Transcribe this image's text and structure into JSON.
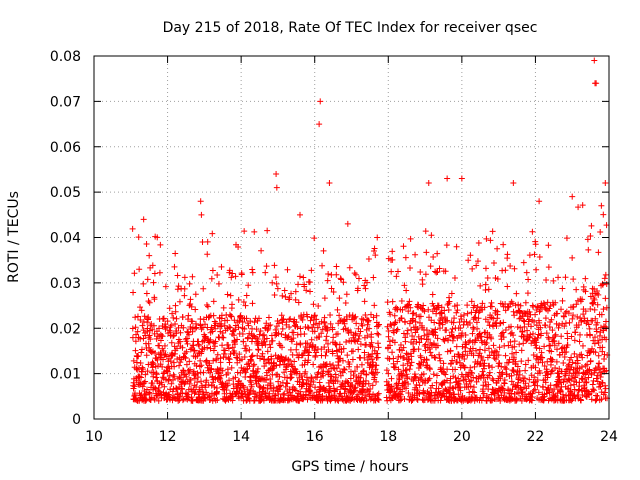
{
  "chart_data": {
    "type": "scatter",
    "title": "Day 215 of 2018, Rate Of TEC Index for receiver qsec",
    "xlabel": "GPS time / hours",
    "ylabel": "ROTI / TECUs",
    "xlim": [
      10,
      24
    ],
    "ylim": [
      0,
      0.08
    ],
    "grid": true,
    "marker": "+",
    "series_color": "#ff0000",
    "x_ticks": [
      {
        "value": 10,
        "label": "10"
      },
      {
        "value": 12,
        "label": "12"
      },
      {
        "value": 14,
        "label": "14"
      },
      {
        "value": 16,
        "label": "16"
      },
      {
        "value": 18,
        "label": "18"
      },
      {
        "value": 20,
        "label": "20"
      },
      {
        "value": 22,
        "label": "22"
      },
      {
        "value": 24,
        "label": "24"
      }
    ],
    "y_ticks": [
      {
        "value": 0,
        "label": "0"
      },
      {
        "value": 0.01,
        "label": "0.01"
      },
      {
        "value": 0.02,
        "label": "0.02"
      },
      {
        "value": 0.03,
        "label": "0.03"
      },
      {
        "value": 0.04,
        "label": "0.04"
      },
      {
        "value": 0.05,
        "label": "0.05"
      },
      {
        "value": 0.06,
        "label": "0.06"
      },
      {
        "value": 0.07,
        "label": "0.07"
      },
      {
        "value": 0.08,
        "label": "0.08"
      }
    ],
    "data_range": {
      "x_start": 11.05,
      "x_end": 23.95,
      "gap_start": 17.75,
      "gap_end": 17.95
    },
    "peaks": [
      {
        "x": 11.35,
        "y": 0.044
      },
      {
        "x": 11.5,
        "y": 0.036
      },
      {
        "x": 12.9,
        "y": 0.048
      },
      {
        "x": 12.92,
        "y": 0.045
      },
      {
        "x": 12.95,
        "y": 0.039
      },
      {
        "x": 14.95,
        "y": 0.054
      },
      {
        "x": 14.97,
        "y": 0.051
      },
      {
        "x": 15.6,
        "y": 0.045
      },
      {
        "x": 16.15,
        "y": 0.07
      },
      {
        "x": 16.12,
        "y": 0.065
      },
      {
        "x": 16.4,
        "y": 0.052
      },
      {
        "x": 16.9,
        "y": 0.043
      },
      {
        "x": 17.7,
        "y": 0.04
      },
      {
        "x": 19.1,
        "y": 0.052
      },
      {
        "x": 19.6,
        "y": 0.053
      },
      {
        "x": 20.0,
        "y": 0.053
      },
      {
        "x": 21.4,
        "y": 0.052
      },
      {
        "x": 22.1,
        "y": 0.048
      },
      {
        "x": 23.0,
        "y": 0.049
      },
      {
        "x": 23.6,
        "y": 0.079
      },
      {
        "x": 23.62,
        "y": 0.074
      },
      {
        "x": 23.65,
        "y": 0.074
      },
      {
        "x": 23.9,
        "y": 0.052
      }
    ]
  }
}
